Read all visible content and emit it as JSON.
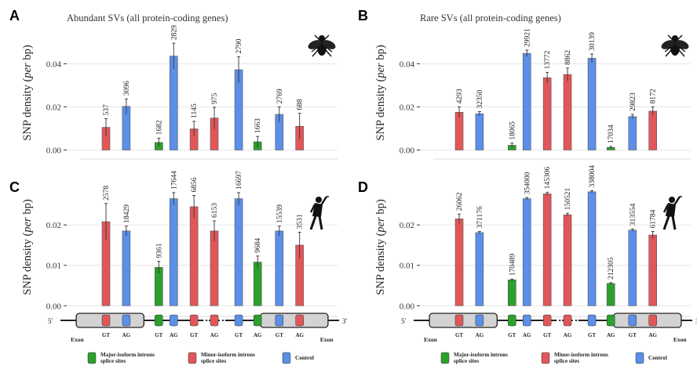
{
  "legend": {
    "items": [
      {
        "key": "major",
        "label_lines": [
          "Major-isoform introns",
          "splice sites"
        ],
        "color": "#2ca02c"
      },
      {
        "key": "minor",
        "label_lines": [
          "Minor-isoform introns",
          "splice sites"
        ],
        "color": "#e15759"
      },
      {
        "key": "control",
        "label_lines": [
          "Control"
        ],
        "color": "#5b8fe8"
      }
    ]
  },
  "colors": {
    "major": "#2ca02c",
    "minor": "#e15759",
    "control": "#5b8fe8",
    "grid": "#e6e6e6",
    "exon_fill": "#d3d3d3"
  },
  "icons": {
    "A": "fruit-fly-icon",
    "B": "fruit-fly-icon",
    "C": "human-silhouette-icon",
    "D": "human-silhouette-icon"
  },
  "gene_diagram": {
    "left_end": "5'",
    "right_end": "3'",
    "exon_label": "Exon",
    "site_labels": [
      "GT",
      "AG",
      "GT",
      "AG",
      "GT",
      "AG",
      "GT",
      "AG",
      "GT",
      "AG"
    ]
  },
  "chart_data": [
    {
      "panel": "A",
      "type": "bar",
      "title": "Abundant SVs (all protein-coding genes)",
      "ylabel_parts": [
        "SNP density (",
        "per",
        " bp)"
      ],
      "ylim": [
        -0.002,
        0.055
      ],
      "yticks": [
        0.0,
        0.02,
        0.04
      ],
      "ytick_labels": [
        "0.00",
        "0.02",
        "0.04"
      ],
      "bars": [
        {
          "group": "minor",
          "value": 0.0105,
          "err": 0.004,
          "n": "537"
        },
        {
          "group": "control",
          "value": 0.0202,
          "err": 0.0035,
          "n": "3096"
        },
        {
          "group": "major",
          "value": 0.0035,
          "err": 0.002,
          "n": "1682"
        },
        {
          "group": "control",
          "value": 0.0435,
          "err": 0.006,
          "n": "2829"
        },
        {
          "group": "minor",
          "value": 0.0098,
          "err": 0.0035,
          "n": "1145"
        },
        {
          "group": "minor",
          "value": 0.0148,
          "err": 0.005,
          "n": "975"
        },
        {
          "group": "control",
          "value": 0.0372,
          "err": 0.006,
          "n": "2790"
        },
        {
          "group": "major",
          "value": 0.0038,
          "err": 0.0025,
          "n": "1663"
        },
        {
          "group": "control",
          "value": 0.0165,
          "err": 0.0035,
          "n": "2769"
        },
        {
          "group": "minor",
          "value": 0.011,
          "err": 0.006,
          "n": "688"
        }
      ]
    },
    {
      "panel": "B",
      "type": "bar",
      "title": "Rare SVs (all protein-coding genes)",
      "ylabel_parts": [
        "SNP density (",
        "per",
        " bp)"
      ],
      "ylim": [
        -0.002,
        0.055
      ],
      "yticks": [
        0.0,
        0.02,
        0.04
      ],
      "ytick_labels": [
        "0.00",
        "0.02",
        "0.04"
      ],
      "bars": [
        {
          "group": "minor",
          "value": 0.0175,
          "err": 0.0025,
          "n": "4293"
        },
        {
          "group": "control",
          "value": 0.0168,
          "err": 0.001,
          "n": "32350"
        },
        {
          "group": "major",
          "value": 0.0022,
          "err": 0.001,
          "n": "18065"
        },
        {
          "group": "control",
          "value": 0.0448,
          "err": 0.0015,
          "n": "29921"
        },
        {
          "group": "minor",
          "value": 0.0335,
          "err": 0.0025,
          "n": "13772"
        },
        {
          "group": "minor",
          "value": 0.035,
          "err": 0.003,
          "n": "8862"
        },
        {
          "group": "control",
          "value": 0.0425,
          "err": 0.002,
          "n": "30139"
        },
        {
          "group": "major",
          "value": 0.0012,
          "err": 0.0004,
          "n": "17034"
        },
        {
          "group": "control",
          "value": 0.0155,
          "err": 0.001,
          "n": "29823"
        },
        {
          "group": "minor",
          "value": 0.018,
          "err": 0.002,
          "n": "8172"
        }
      ]
    },
    {
      "panel": "C",
      "type": "bar",
      "ylabel_parts": [
        "SNP density (",
        "per",
        " bp)"
      ],
      "ylim": [
        -0.0015,
        0.0305
      ],
      "yticks": [
        0.0,
        0.01,
        0.02
      ],
      "ytick_labels": [
        "0.00",
        "0.01",
        "0.02"
      ],
      "bars": [
        {
          "group": "minor",
          "value": 0.0208,
          "err": 0.0045,
          "n": "2578"
        },
        {
          "group": "control",
          "value": 0.0185,
          "err": 0.0012,
          "n": "18429"
        },
        {
          "group": "major",
          "value": 0.0095,
          "err": 0.0015,
          "n": "9361"
        },
        {
          "group": "control",
          "value": 0.0265,
          "err": 0.0015,
          "n": "17644"
        },
        {
          "group": "minor",
          "value": 0.0245,
          "err": 0.0028,
          "n": "6856"
        },
        {
          "group": "minor",
          "value": 0.0185,
          "err": 0.0025,
          "n": "6153"
        },
        {
          "group": "control",
          "value": 0.0265,
          "err": 0.0015,
          "n": "16697"
        },
        {
          "group": "major",
          "value": 0.0108,
          "err": 0.0015,
          "n": "9684"
        },
        {
          "group": "control",
          "value": 0.0185,
          "err": 0.0012,
          "n": "15539"
        },
        {
          "group": "minor",
          "value": 0.015,
          "err": 0.0032,
          "n": "3531"
        }
      ]
    },
    {
      "panel": "D",
      "type": "bar",
      "ylabel_parts": [
        "SNP density (",
        "per",
        " bp)"
      ],
      "ylim": [
        -0.0015,
        0.0305
      ],
      "yticks": [
        0.0,
        0.01,
        0.02
      ],
      "ytick_labels": [
        "0.00",
        "0.01",
        "0.02"
      ],
      "bars": [
        {
          "group": "minor",
          "value": 0.0215,
          "err": 0.0012,
          "n": "26062"
        },
        {
          "group": "control",
          "value": 0.0181,
          "err": 0.0003,
          "n": "371176"
        },
        {
          "group": "major",
          "value": 0.0064,
          "err": 0.0002,
          "n": "170489"
        },
        {
          "group": "control",
          "value": 0.0265,
          "err": 0.0003,
          "n": "354000"
        },
        {
          "group": "minor",
          "value": 0.0277,
          "err": 0.0004,
          "n": "145306"
        },
        {
          "group": "minor",
          "value": 0.0225,
          "err": 0.0004,
          "n": "150521"
        },
        {
          "group": "control",
          "value": 0.0282,
          "err": 0.0003,
          "n": "338004"
        },
        {
          "group": "major",
          "value": 0.0055,
          "err": 0.0002,
          "n": "212305"
        },
        {
          "group": "control",
          "value": 0.0187,
          "err": 0.0003,
          "n": "313554"
        },
        {
          "group": "minor",
          "value": 0.0175,
          "err": 0.0009,
          "n": "61784"
        }
      ]
    }
  ]
}
